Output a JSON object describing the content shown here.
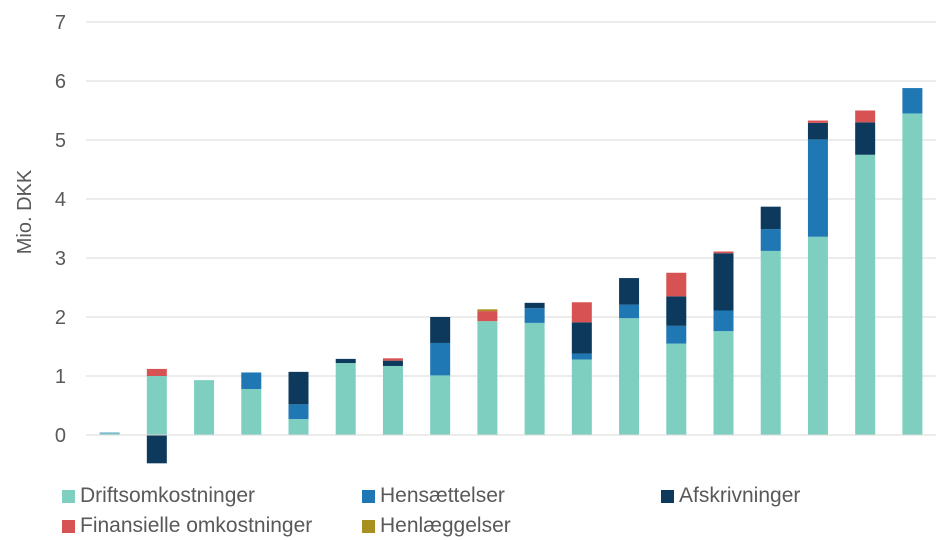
{
  "chart_data": {
    "type": "bar",
    "stacked": true,
    "ylabel": "Mio. DKK",
    "xlabel": "",
    "ylim": [
      -0.5,
      7
    ],
    "yticks": [
      0,
      1,
      2,
      3,
      4,
      5,
      6,
      7
    ],
    "grid": true,
    "legend_position": "bottom",
    "bar_count": 18,
    "series": [
      {
        "name": "Driftsomkostninger",
        "color": "#7ECFC0",
        "values": [
          0.03,
          1.0,
          0.93,
          0.78,
          0.27,
          1.22,
          1.17,
          1.01,
          1.93,
          1.9,
          1.28,
          1.98,
          1.55,
          1.76,
          3.12,
          3.36,
          4.75,
          5.45
        ]
      },
      {
        "name": "Hensættelser",
        "color": "#1F77B4",
        "values": [
          0.01,
          0.0,
          0.0,
          0.28,
          0.25,
          0.0,
          0.0,
          0.55,
          0.0,
          0.25,
          0.1,
          0.23,
          0.3,
          0.35,
          0.37,
          1.65,
          0.0,
          0.43
        ]
      },
      {
        "name": "Afskrivninger",
        "color": "#0D3A5C",
        "values": [
          0.0,
          -0.48,
          0.0,
          0.0,
          0.55,
          0.07,
          0.09,
          0.44,
          0.0,
          0.09,
          0.53,
          0.45,
          0.5,
          0.97,
          0.38,
          0.28,
          0.55,
          0.0
        ]
      },
      {
        "name": "Finansielle omkostninger",
        "color": "#D75353",
        "values": [
          0.0,
          0.12,
          0.0,
          0.0,
          0.0,
          0.0,
          0.04,
          0.0,
          0.17,
          0.0,
          0.34,
          0.0,
          0.4,
          0.03,
          0.0,
          0.04,
          0.2,
          0.0
        ]
      },
      {
        "name": "Henlæggelser",
        "color": "#A89020",
        "values": [
          0.0,
          0.0,
          0.0,
          0.0,
          0.0,
          0.0,
          0.0,
          0.0,
          0.03,
          0.0,
          0.0,
          0.0,
          0.0,
          0.0,
          0.0,
          0.0,
          0.0,
          0.0
        ]
      }
    ]
  }
}
